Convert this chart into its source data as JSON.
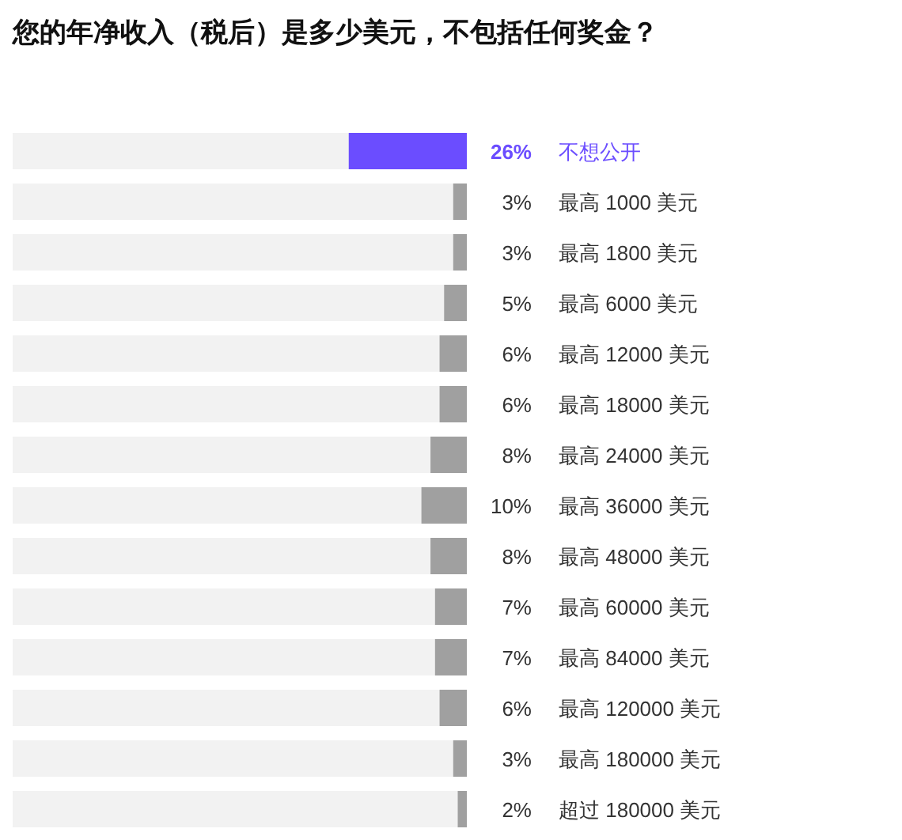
{
  "chart_data": {
    "type": "bar",
    "orientation": "horizontal",
    "title": "您的年净收入（税后）是多少美元，不包括任何奖金？",
    "categories": [
      "不想公开",
      "最高 1000 美元",
      "最高 1800 美元",
      "最高 6000 美元",
      "最高 12000 美元",
      "最高 18000 美元",
      "最高 24000 美元",
      "最高 36000 美元",
      "最高 48000 美元",
      "最高 60000 美元",
      "最高 84000 美元",
      "最高 120000 美元",
      "最高 180000 美元",
      "超过 180000 美元"
    ],
    "values": [
      26,
      3,
      3,
      5,
      6,
      6,
      8,
      10,
      8,
      7,
      7,
      6,
      3,
      2
    ],
    "colors": [
      "#6b4dff",
      "#a0a0a0",
      "#a0a0a0",
      "#a0a0a0",
      "#a0a0a0",
      "#a0a0a0",
      "#a0a0a0",
      "#a0a0a0",
      "#a0a0a0",
      "#a0a0a0",
      "#a0a0a0",
      "#a0a0a0",
      "#a0a0a0",
      "#a0a0a0"
    ],
    "value_labels": [
      "26%",
      "3%",
      "3%",
      "5%",
      "6%",
      "6%",
      "8%",
      "10%",
      "8%",
      "7%",
      "7%",
      "6%",
      "3%",
      "2%"
    ],
    "xlim": [
      100,
      0
    ]
  }
}
